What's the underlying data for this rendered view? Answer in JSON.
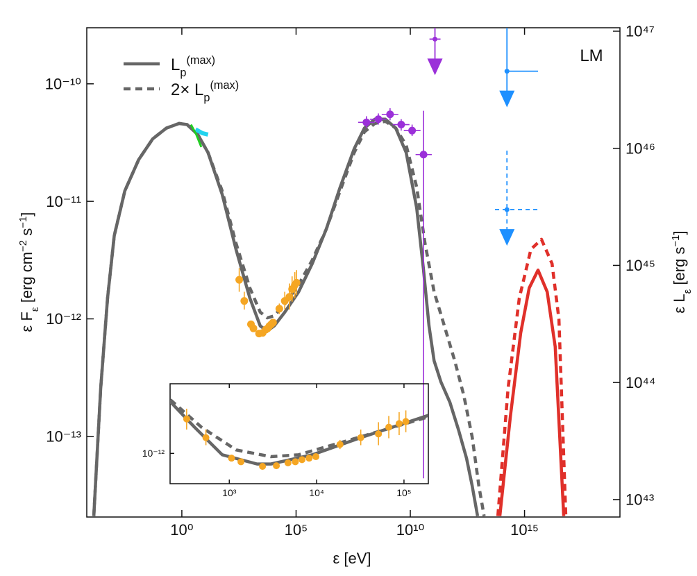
{
  "chart_data": [
    {
      "type": "line",
      "xlabel": "ε [eV]",
      "ylabel": [
        {
          "text": "ε F"
        },
        {
          "text": "ε",
          "shift": "sub"
        },
        {
          "text": " [erg cm"
        },
        {
          "text": "−2",
          "shift": "sup"
        },
        {
          "text": " s"
        },
        {
          "text": "−1",
          "shift": "sup"
        },
        {
          "text": "]"
        }
      ],
      "y2label": [
        {
          "text": "ε L"
        },
        {
          "text": "ε",
          "shift": "sub"
        },
        {
          "text": " [erg s"
        },
        {
          "text": "−1",
          "shift": "sup"
        },
        {
          "text": "]"
        }
      ],
      "annotation": "LM",
      "log_x": true,
      "log_y": true,
      "grid": false,
      "legend": "upper left",
      "xlim": [
        6.9e-05,
        1.5e+19
      ],
      "ylim": [
        2.06e-14,
        3e-10
      ],
      "y2lim": [
        7.1e+42,
        1.07e+47
      ],
      "xticks": [
        {
          "value": 1,
          "label": "10⁰"
        },
        {
          "value": 100000.0,
          "label": "10⁵"
        },
        {
          "value": 10000000000.0,
          "label": "10¹⁰"
        },
        {
          "value": 1000000000000000.0,
          "label": "10¹⁵"
        }
      ],
      "yticks": [
        {
          "value": 1e-10,
          "label": "10⁻¹⁰"
        },
        {
          "value": 1e-11,
          "label": "10⁻¹¹"
        },
        {
          "value": 1e-12,
          "label": "10⁻¹²"
        },
        {
          "value": 1e-13,
          "label": "10⁻¹³"
        }
      ],
      "y2ticks": [
        {
          "value": 1e+43,
          "label": "10⁴³"
        },
        {
          "value": 1e+44,
          "label": "10⁴⁴"
        },
        {
          "value": 1e+45,
          "label": "10⁴⁵"
        },
        {
          "value": 1e+46,
          "label": "10⁴⁶"
        },
        {
          "value": 1e+47,
          "label": "10⁴⁷"
        }
      ],
      "series": [
        {
          "name": [
            {
              "text": "L"
            },
            {
              "text": "p",
              "shift": "sub"
            },
            {
              "text": "(max)",
              "shift": "sup"
            }
          ],
          "color": "#666666",
          "dash": false,
          "kind": "line",
          "x": [
            0.00014,
            0.00028,
            0.00056,
            0.0011,
            0.0032,
            0.013,
            0.053,
            0.21,
            0.76,
            1.7,
            5.0,
            14,
            58,
            235,
            950,
            2700,
            5500,
            11000.0,
            32000.0,
            130000.0,
            510000.0,
            2100000.0,
            8500000.0,
            35000000.0,
            98000000.0,
            280000000.0,
            810000000.0,
            2300000000.0,
            6600000000.0,
            19000000000.0,
            38000000000.0,
            66000000000.0,
            110000000000.0,
            220000000000.0,
            540000000000.0,
            1300000000000.0,
            2900000000000.0,
            5100000000000.0,
            8800000000000.0
          ],
          "values": [
            2.1e-14,
            2.55e-13,
            1.5e-12,
            5.1e-12,
            1.23e-11,
            2.27e-11,
            3.4e-11,
            4.2e-11,
            4.6e-11,
            4.5e-11,
            3.7e-11,
            2.6e-11,
            1.15e-11,
            3.9e-12,
            1.5e-12,
            8.7e-13,
            7.9e-13,
            8.7e-13,
            1.14e-12,
            1.7e-12,
            2.95e-12,
            5.8e-12,
            1.32e-11,
            2.8e-11,
            4.2e-11,
            5e-11,
            5e-11,
            4.2e-11,
            2.6e-11,
            8.8e-12,
            2.6e-12,
            8.7e-13,
            4.4e-13,
            2.9e-13,
            1.95e-13,
            1.13e-13,
            6.5e-14,
            3.8e-14,
            2.1e-14
          ]
        },
        {
          "name": [
            {
              "text": "2× L"
            },
            {
              "text": "p",
              "shift": "sub"
            },
            {
              "text": "(max)",
              "shift": "sup"
            }
          ],
          "color": "#666666",
          "dash": true,
          "kind": "line",
          "x": [
            0.00014,
            0.00028,
            0.00056,
            0.0011,
            0.0032,
            0.013,
            0.053,
            0.21,
            0.76,
            1.7,
            5.0,
            14,
            58,
            235,
            950,
            2700,
            5500,
            11000.0,
            32000.0,
            130000.0,
            510000.0,
            2100000.0,
            8500000.0,
            35000000.0,
            98000000.0,
            280000000.0,
            810000000.0,
            2300000000.0,
            6600000000.0,
            19000000000.0,
            44000000000.0,
            110000000000.0,
            310000000000.0,
            880000000000.0,
            2200000000000.0,
            5100000000000.0,
            10000000000000.0,
            17000000000000.0
          ],
          "values": [
            2.1e-14,
            2.55e-13,
            1.5e-12,
            5.1e-12,
            1.23e-11,
            2.27e-11,
            3.4e-11,
            4.2e-11,
            4.6e-11,
            4.5e-11,
            3.7e-11,
            2.6e-11,
            1.23e-11,
            4.4e-12,
            1.83e-12,
            1.14e-12,
            1.02e-12,
            1.06e-12,
            1.34e-12,
            1.96e-12,
            3.16e-12,
            5.8e-12,
            1.23e-11,
            2.6e-11,
            3.9e-11,
            4.6e-11,
            4.8e-11,
            4.2e-11,
            3e-11,
            1.32e-11,
            4.4e-12,
            1.7e-12,
            8.7e-13,
            4.4e-13,
            2.23e-13,
            9.9e-14,
            3.8e-14,
            2.1e-14
          ]
        },
        {
          "color": "#e0302a",
          "dash": false,
          "kind": "line",
          "x": [
            83000000000000.0,
            240000000000000.0,
            680000000000000.0,
            1600000000000000.0,
            3900000000000000.0,
            9800000000000000.0,
            2.2e+16,
            5.2e+16
          ],
          "values": [
            2.1e-14,
            1.48e-13,
            7.6e-13,
            1.83e-12,
            2.6e-12,
            1.7e-12,
            5.8e-13,
            2.1e-14
          ]
        },
        {
          "color": "#e0302a",
          "dash": true,
          "kind": "line",
          "x": [
            68000000000000.0,
            190000000000000.0,
            590000000000000.0,
            1900000000000000.0,
            5500000000000000.0,
            1.6e+16,
            3.2e+16,
            6.4e+16
          ],
          "values": [
            2.1e-14,
            2.55e-13,
            1.5e-12,
            3.9e-12,
            4.75e-12,
            2.95e-12,
            9.95e-13,
            2.1e-14
          ]
        },
        {
          "color": "#22d3ee",
          "dash": false,
          "kind": "spectrum",
          "x": [
            4.0,
            8.0,
            14
          ],
          "values": [
            4.1e-11,
            3.8e-11,
            3.7e-11
          ]
        },
        {
          "color": "#22cc22",
          "dash": false,
          "kind": "spectrum",
          "x": [
            2.5,
            4.3,
            7.1
          ],
          "values": [
            4.5e-11,
            3.7e-11,
            2.9e-11
          ]
        },
        {
          "color": "#f5a623",
          "kind": "points",
          "inset": true,
          "x": [
            325,
            540,
            1060,
            1360,
            2400,
            3460,
            4700,
            5700,
            6800,
            8200,
            9800,
            18500.0,
            32000.0,
            51000.0,
            67000.0,
            88000.0,
            105000.0
          ],
          "values": [
            2.15e-12,
            1.42e-12,
            9e-13,
            8.3e-13,
            7.5e-13,
            7.6e-13,
            8.1e-13,
            8.3e-13,
            8.7e-13,
            9e-13,
            9.3e-13,
            1.22e-12,
            1.42e-12,
            1.54e-12,
            1.79e-12,
            1.94e-12,
            2.03e-12
          ],
          "ylow": [
            1.7e-12,
            1.2e-12,
            8.5e-13,
            7.9e-13,
            7.2e-13,
            7.3e-13,
            7.8e-13,
            8e-13,
            8.4e-13,
            8.6e-13,
            8.9e-13,
            1.1e-12,
            1.2e-12,
            1.2e-12,
            1.4e-12,
            1.5e-12,
            1.6e-12
          ],
          "yhigh": [
            2.7e-12,
            1.7e-12,
            9.5e-13,
            8.7e-13,
            7.8e-13,
            7.9e-13,
            8.4e-13,
            8.6e-13,
            9e-13,
            9.4e-13,
            9.7e-13,
            1.35e-12,
            1.7e-12,
            2e-12,
            2.3e-12,
            2.5e-12,
            2.6e-12
          ]
        },
        {
          "color": "#9b30d9",
          "kind": "points",
          "x": [
            120000000.0,
            400000000.0,
            1300000000.0,
            4000000000.0,
            12000000000.0,
            38000000000.0
          ],
          "values": [
            4.7e-11,
            5e-11,
            5.5e-11,
            4.5e-11,
            4e-11,
            2.5e-11
          ],
          "xlow": [
            52000000.0,
            170000000.0,
            560000000.0,
            1700000000.0,
            5200000000.0,
            17000000000.0
          ],
          "xhigh": [
            280000000.0,
            920000000.0,
            3000000000.0,
            9200000000.0,
            28000000000.0,
            87000000000.0
          ],
          "ylow": [
            4.2e-11,
            4.5e-11,
            4.9e-11,
            4e-11,
            3.6e-11,
            4.4e-14
          ],
          "yhigh": [
            5.3e-11,
            5.6e-11,
            6.2e-11,
            5e-11,
            4.5e-11,
            5.9e-11
          ]
        },
        {
          "color": "#9b30d9",
          "kind": "upper_limit",
          "dash": false,
          "x": [
            120000000000.0
          ],
          "values": [
            2.4e-10
          ],
          "xlow": [
            69000000000.0
          ],
          "xhigh": [
            210000000000.0
          ]
        },
        {
          "color": "#1e90ff",
          "kind": "upper_limit",
          "dash": false,
          "x": [
            170000000000000.0
          ],
          "values": [
            1.28e-10
          ],
          "xlow": [
            170000000000000.0
          ],
          "xhigh": [
            3900000000000000.0
          ]
        },
        {
          "color": "#1e90ff",
          "kind": "upper_limit",
          "dash": true,
          "x": [
            170000000000000.0
          ],
          "values": [
            8.5e-12
          ],
          "xlow": [
            51000000000000.0
          ],
          "xhigh": [
            4200000000000000.0
          ]
        }
      ]
    },
    {
      "type": "line",
      "log_x": true,
      "log_y": true,
      "xlim": [
        210,
        190000.0
      ],
      "ylim": [
        5.1e-13,
        4.7e-12
      ],
      "xticks": [
        {
          "value": 1000,
          "label": "10³"
        },
        {
          "value": 10000,
          "label": "10⁴"
        },
        {
          "value": 100000,
          "label": "10⁵"
        }
      ],
      "yticks": [
        {
          "value": 1e-12,
          "label": "10⁻¹²"
        }
      ],
      "series": [
        {
          "color": "#666666",
          "dash": false,
          "kind": "line",
          "x": [
            211,
            400,
            830,
            2080,
            3000,
            8900,
            32000.0,
            190000.0
          ],
          "values": [
            3.16e-12,
            1.79e-12,
            9.7e-13,
            7.9e-13,
            7.9e-13,
            9.7e-13,
            1.42e-12,
            2.33e-12
          ]
        },
        {
          "color": "#666666",
          "dash": true,
          "kind": "line",
          "x": [
            211,
            480,
            1200,
            3000,
            6200,
            22000.0,
            190000.0
          ],
          "values": [
            3.3e-12,
            1.79e-12,
            1.08e-12,
            9.3e-13,
            9.7e-13,
            1.32e-12,
            2.25e-12
          ]
        }
      ]
    }
  ]
}
